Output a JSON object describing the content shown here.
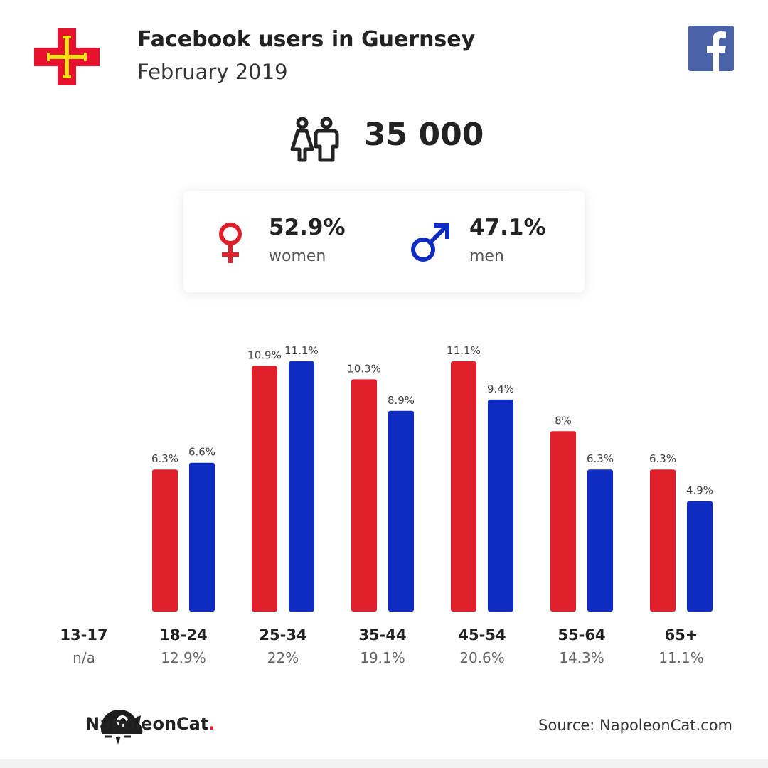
{
  "header": {
    "title": "Facebook users in Guernsey",
    "subtitle": "February 2019"
  },
  "colors": {
    "women": "#e0202a",
    "men": "#0f2cc2",
    "facebook": "#4a62a8",
    "flag_red": "#e8112d",
    "flag_gold": "#f9dd16"
  },
  "icons": [
    "guernsey-flag-icon",
    "facebook-logo-icon",
    "users-icon",
    "female-symbol-icon",
    "male-symbol-icon",
    "napoleoncat-logo-icon"
  ],
  "summary": {
    "total_users": "35 000"
  },
  "gender": {
    "women_pct": "52.9%",
    "women_label": "women",
    "men_pct": "47.1%",
    "men_label": "men"
  },
  "chart_data": {
    "type": "bar",
    "categories": [
      "13-17",
      "18-24",
      "25-34",
      "35-44",
      "45-54",
      "55-64",
      "65+"
    ],
    "category_totals": [
      "n/a",
      "12.9%",
      "22%",
      "19.1%",
      "20.6%",
      "14.3%",
      "11.1%"
    ],
    "series": [
      {
        "name": "women",
        "values": [
          null,
          6.3,
          10.9,
          10.3,
          11.1,
          8,
          6.3
        ],
        "labels": [
          null,
          "6.3%",
          "10.9%",
          "10.3%",
          "11.1%",
          "8%",
          "6.3%"
        ]
      },
      {
        "name": "men",
        "values": [
          null,
          6.6,
          11.1,
          8.9,
          9.4,
          6.3,
          4.9
        ],
        "labels": [
          null,
          "6.6%",
          "11.1%",
          "8.9%",
          "9.4%",
          "6.3%",
          "4.9%"
        ]
      }
    ],
    "ylim": [
      0,
      11.1
    ],
    "grid": false,
    "legend": "none"
  },
  "footer": {
    "brand_name": "NapoleonCat",
    "brand_dot": ".",
    "source": "Source: NapoleonCat.com"
  }
}
